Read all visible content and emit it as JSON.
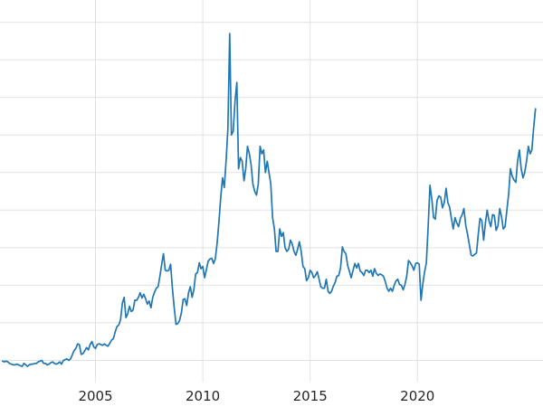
{
  "chart_data": {
    "type": "line",
    "title": "",
    "xlabel": "",
    "ylabel": "",
    "background_color": "#ffffff",
    "line_color": "#1f77b4",
    "line_width": 1.7,
    "grid_color": "#e2e2e2",
    "tick_label_color": "#262626",
    "x_axis": {
      "min": 2000.55,
      "max": 2025.85,
      "ticks": [
        {
          "value": 2005,
          "label": "2005"
        },
        {
          "value": 2010,
          "label": "2010"
        },
        {
          "value": 2015,
          "label": "2015"
        },
        {
          "value": 2020,
          "label": "2020"
        }
      ]
    },
    "y_axis": {
      "min": 0,
      "max": 52,
      "gridline_step": 5,
      "tick_labels_visible": false
    },
    "grid": {
      "horizontal": true,
      "vertical": true
    },
    "series": [
      {
        "name": "price",
        "start_year": 2000.6667,
        "points_per_year": 12,
        "values": [
          4.9,
          4.8,
          4.9,
          4.8,
          4.6,
          4.5,
          4.4,
          4.4,
          4.5,
          4.4,
          4.3,
          4.2,
          4.6,
          4.4,
          4.2,
          4.4,
          4.5,
          4.5,
          4.6,
          4.6,
          4.8,
          4.9,
          5.0,
          4.6,
          4.6,
          4.4,
          4.5,
          4.7,
          4.8,
          4.6,
          4.5,
          4.6,
          4.8,
          4.5,
          5.0,
          5.1,
          5.2,
          5.0,
          5.2,
          5.7,
          6.3,
          6.6,
          7.2,
          7.1,
          5.8,
          5.9,
          6.3,
          6.7,
          6.4,
          7.1,
          7.5,
          6.8,
          6.6,
          7.1,
          7.2,
          7.1,
          7.0,
          7.2,
          7.0,
          6.9,
          7.3,
          7.7,
          7.9,
          8.8,
          9.5,
          9.7,
          10.4,
          12.6,
          13.4,
          10.7,
          11.2,
          12.2,
          11.5,
          11.7,
          13.0,
          13.0,
          13.4,
          14.0,
          13.3,
          13.8,
          13.2,
          12.5,
          12.9,
          12.0,
          13.4,
          14.1,
          14.6,
          14.8,
          16.2,
          17.8,
          19.2,
          17.0,
          16.9,
          17.0,
          17.8,
          14.6,
          12.0,
          9.8,
          9.9,
          10.3,
          11.3,
          13.1,
          13.2,
          12.3,
          14.0,
          14.8,
          13.4,
          14.4,
          16.5,
          16.7,
          18.0,
          17.2,
          17.5,
          16.0,
          17.1,
          18.2,
          18.5,
          18.6,
          17.9,
          18.5,
          20.6,
          23.4,
          26.7,
          29.3,
          28.0,
          31.5,
          35.8,
          48.5,
          35.0,
          35.5,
          39.5,
          42.0,
          30.5,
          32.0,
          31.5,
          28.9,
          30.5,
          33.5,
          32.5,
          31.0,
          28.5,
          27.5,
          27.0,
          28.5,
          33.5,
          32.5,
          33.0,
          30.0,
          31.5,
          30.0,
          28.5,
          24.0,
          22.5,
          19.5,
          19.5,
          22.5,
          21.5,
          22.0,
          20.0,
          19.5,
          19.8,
          21.0,
          20.5,
          19.5,
          19.0,
          19.8,
          20.8,
          19.5,
          17.5,
          17.2,
          15.6,
          16.0,
          17.0,
          16.7,
          16.0,
          16.3,
          16.8,
          15.8,
          14.8,
          14.6,
          14.6,
          15.8,
          14.2,
          13.9,
          14.2,
          14.9,
          15.4,
          16.2,
          16.3,
          17.3,
          20.1,
          19.5,
          19.2,
          17.6,
          16.8,
          16.0,
          17.0,
          17.9,
          17.3,
          17.9,
          16.9,
          16.7,
          16.3,
          17.0,
          17.0,
          16.7,
          17.0,
          16.2,
          17.2,
          16.6,
          16.3,
          16.5,
          16.4,
          16.2,
          15.5,
          14.6,
          14.2,
          14.6,
          14.2,
          15.0,
          15.6,
          15.8,
          15.1,
          15.0,
          14.4,
          15.1,
          16.2,
          18.3,
          18.0,
          17.6,
          17.0,
          17.9,
          18.0,
          17.8,
          13.0,
          15.2,
          16.8,
          18.0,
          22.8,
          28.3,
          26.5,
          24.0,
          23.8,
          26.3,
          26.9,
          26.7,
          25.3,
          26.0,
          27.9,
          26.0,
          25.4,
          23.9,
          22.5,
          24.0,
          23.3,
          22.8,
          23.9,
          24.4,
          25.2,
          23.0,
          21.8,
          20.4,
          19.0,
          18.9,
          19.1,
          19.3,
          21.8,
          23.9,
          23.6,
          21.0,
          23.3,
          25.0,
          23.6,
          22.8,
          24.4,
          24.3,
          22.3,
          22.9,
          25.2,
          24.1,
          22.5,
          22.8,
          25.0,
          27.2,
          30.5,
          29.5,
          29.0,
          28.7,
          31.5,
          33.0,
          30.5,
          29.3,
          30.0,
          31.5,
          33.5,
          32.5,
          33.0,
          36.0,
          38.5
        ]
      }
    ]
  }
}
